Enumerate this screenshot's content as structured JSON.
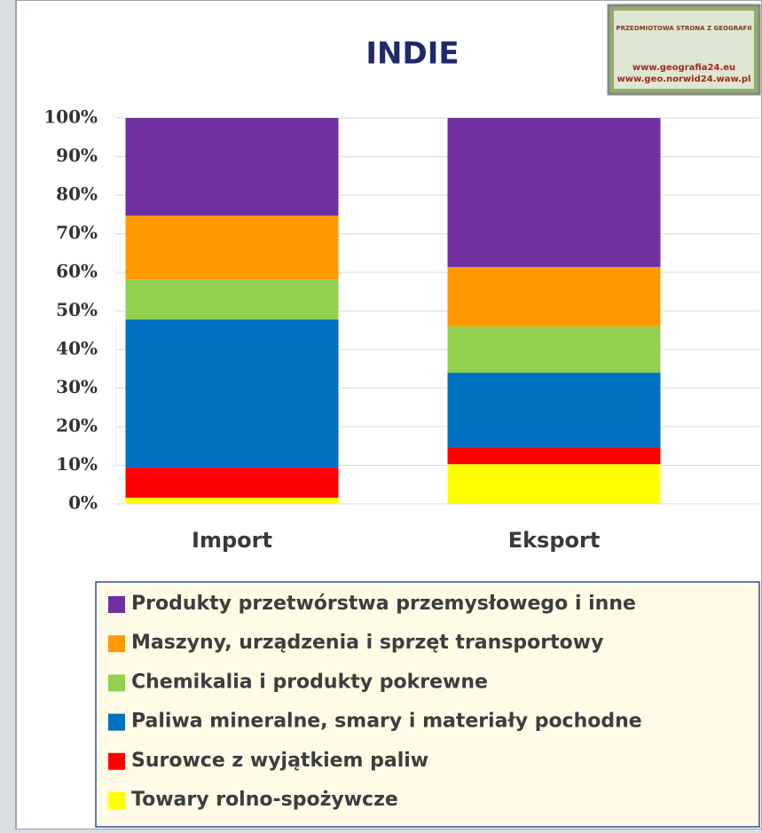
{
  "chart_data": {
    "type": "stacked-bar",
    "title": "INDIE",
    "categories": [
      "Import",
      "Eksport"
    ],
    "series": [
      {
        "name": "Towary  rolno-spożywcze",
        "color": "#ffff00",
        "values": [
          1.6,
          10.3
        ]
      },
      {
        "name": "Surowce z wyjątkiem paliw",
        "color": "#ff0000",
        "values": [
          7.8,
          4.4
        ]
      },
      {
        "name": "Paliwa mineralne, smary i materiały pochodne",
        "color": "#0070c0",
        "values": [
          38.4,
          19.3
        ]
      },
      {
        "name": "Chemikalia i produkty pokrewne",
        "color": "#92d050",
        "values": [
          10.4,
          12.0
        ]
      },
      {
        "name": "Maszyny, urządzenia i sprzęt transportowy",
        "color": "#ff9900",
        "values": [
          16.5,
          15.4
        ]
      },
      {
        "name": "Produkty przetwórstwa przemysłowego i inne",
        "color": "#7030a0",
        "values": [
          25.3,
          38.6
        ]
      }
    ],
    "ylim": [
      0,
      100
    ],
    "yticks": [
      {
        "value": 0,
        "label": "0%"
      },
      {
        "value": 10,
        "label": "10%"
      },
      {
        "value": 20,
        "label": "20%"
      },
      {
        "value": 30,
        "label": "30%"
      },
      {
        "value": 40,
        "label": "40%"
      },
      {
        "value": 50,
        "label": "50%"
      },
      {
        "value": 60,
        "label": "60%"
      },
      {
        "value": 70,
        "label": "70%"
      },
      {
        "value": 80,
        "label": "80%"
      },
      {
        "value": 90,
        "label": "90%"
      },
      {
        "value": 100,
        "label": "100%"
      }
    ],
    "grid": true
  },
  "logo": {
    "lines": [
      "PRZEDMIOTOWA STRONA Z GEOGRAFII",
      "www.geografia24.eu",
      "www.geo.norwid24.waw.pl"
    ]
  }
}
